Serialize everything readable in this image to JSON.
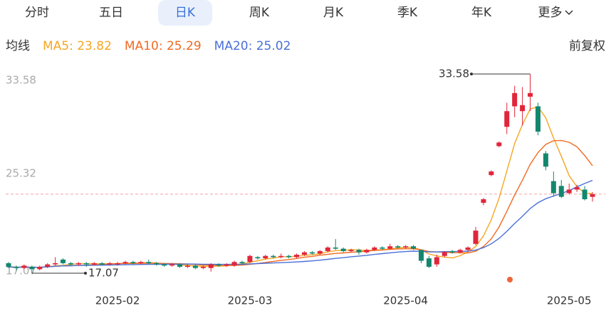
{
  "tabs": [
    "分时",
    "五日",
    "日K",
    "周K",
    "月K",
    "季K",
    "年K",
    "更多"
  ],
  "selected_tab": "日K",
  "legend_title": "均线",
  "adjust": "前复权",
  "chart_data": {
    "type": "candlestick",
    "ma_labels": [
      "MA5: 23.82",
      "MA10: 25.29",
      "MA20: 25.02"
    ],
    "ma_periods": [
      5,
      10,
      20
    ],
    "ma_colors": [
      "#f5a623",
      "#f06a22",
      "#4a70d8"
    ],
    "up_color": "#e0263a",
    "down_color": "#13876e",
    "ylim": [
      17.07,
      33.58
    ],
    "yticks": [
      17.07,
      25.32,
      33.58
    ],
    "categories": [
      null,
      null,
      null,
      null,
      null,
      null,
      null,
      null,
      null,
      null,
      null,
      null,
      null,
      null,
      "2025-02",
      null,
      null,
      null,
      null,
      null,
      null,
      null,
      null,
      null,
      null,
      null,
      null,
      null,
      null,
      null,
      null,
      "2025-03",
      null,
      null,
      null,
      null,
      null,
      null,
      null,
      null,
      null,
      null,
      null,
      null,
      null,
      null,
      null,
      null,
      null,
      null,
      null,
      "2025-04",
      null,
      null,
      null,
      null,
      null,
      null,
      null,
      null,
      null,
      null,
      null,
      null,
      null,
      null,
      null,
      null,
      null,
      null,
      null,
      null,
      "2025-05",
      null,
      null,
      null
    ],
    "open": [
      17.9,
      17.6,
      17.5,
      17.6,
      17.4,
      17.6,
      17.8,
      18.2,
      17.9,
      17.8,
      17.9,
      17.8,
      17.9,
      17.8,
      17.8,
      17.9,
      18.0,
      17.9,
      18.0,
      17.9,
      17.8,
      17.7,
      17.8,
      17.6,
      17.7,
      17.5,
      17.5,
      17.8,
      17.7,
      17.7,
      18.0,
      18.0,
      18.4,
      18.3,
      18.5,
      18.4,
      18.5,
      18.4,
      18.6,
      18.8,
      18.7,
      18.9,
      19.2,
      19.1,
      18.9,
      19.0,
      18.8,
      19.0,
      19.2,
      19.1,
      19.3,
      19.2,
      19.3,
      19.0,
      18.3,
      17.8,
      18.5,
      18.9,
      18.8,
      19.0,
      19.5,
      22.9,
      25.2,
      27.6,
      29.2,
      30.9,
      30.5,
      31.7,
      30.9,
      27.0,
      24.7,
      24.3,
      23.7,
      24.0,
      24.0,
      23.4
    ],
    "high": [
      18.0,
      17.7,
      17.8,
      17.7,
      17.7,
      17.9,
      18.4,
      18.3,
      18.0,
      18.0,
      18.0,
      18.0,
      18.0,
      18.0,
      18.0,
      18.1,
      18.1,
      18.1,
      18.2,
      18.0,
      17.9,
      17.9,
      17.9,
      17.8,
      17.8,
      17.7,
      17.9,
      17.9,
      17.9,
      18.1,
      18.1,
      18.6,
      18.5,
      18.6,
      18.6,
      18.7,
      18.6,
      18.7,
      18.9,
      18.9,
      19.0,
      19.3,
      19.9,
      19.2,
      19.1,
      19.1,
      19.1,
      19.3,
      19.3,
      19.5,
      19.4,
      19.4,
      19.4,
      19.0,
      18.5,
      18.6,
      18.9,
      19.0,
      19.1,
      19.3,
      20.9,
      23.3,
      25.6,
      28.0,
      31.2,
      32.6,
      32.5,
      33.58,
      31.2,
      27.2,
      25.5,
      24.8,
      24.5,
      24.4,
      24.3,
      23.8
    ],
    "low": [
      17.5,
      17.3,
      17.4,
      17.07,
      17.3,
      17.5,
      17.7,
      17.8,
      17.7,
      17.7,
      17.6,
      17.7,
      17.7,
      17.7,
      17.7,
      17.8,
      17.8,
      17.8,
      17.8,
      17.7,
      17.6,
      17.6,
      17.5,
      17.5,
      17.4,
      17.4,
      17.2,
      17.6,
      17.6,
      17.6,
      17.8,
      17.9,
      18.2,
      18.2,
      18.3,
      18.3,
      18.3,
      18.3,
      18.5,
      18.6,
      18.6,
      18.8,
      19.0,
      18.8,
      18.8,
      18.6,
      18.7,
      18.9,
      19.0,
      19.0,
      19.1,
      19.1,
      19.0,
      17.9,
      17.5,
      17.6,
      18.4,
      18.7,
      18.7,
      18.9,
      19.4,
      22.7,
      25.1,
      27.5,
      28.6,
      30.0,
      29.3,
      30.5,
      28.5,
      25.6,
      23.4,
      23.3,
      23.6,
      23.8,
      23.1,
      23.0
    ],
    "close": [
      17.6,
      17.5,
      17.7,
      17.4,
      17.6,
      17.8,
      17.9,
      17.9,
      17.8,
      17.9,
      17.8,
      17.9,
      17.8,
      17.9,
      17.9,
      18.0,
      17.9,
      18.0,
      17.9,
      17.8,
      17.7,
      17.8,
      17.6,
      17.7,
      17.5,
      17.6,
      17.8,
      17.7,
      17.8,
      18.0,
      17.9,
      18.5,
      18.3,
      18.5,
      18.4,
      18.5,
      18.4,
      18.6,
      18.8,
      18.7,
      18.9,
      19.2,
      19.1,
      18.9,
      19.0,
      18.8,
      19.0,
      19.2,
      19.1,
      19.3,
      19.2,
      19.3,
      19.1,
      18.1,
      17.6,
      18.4,
      18.8,
      18.8,
      19.0,
      19.2,
      20.6,
      23.2,
      25.5,
      27.9,
      30.5,
      32.0,
      31.0,
      32.0,
      28.8,
      25.9,
      23.7,
      23.4,
      24.0,
      24.2,
      23.2,
      23.62
    ]
  }
}
